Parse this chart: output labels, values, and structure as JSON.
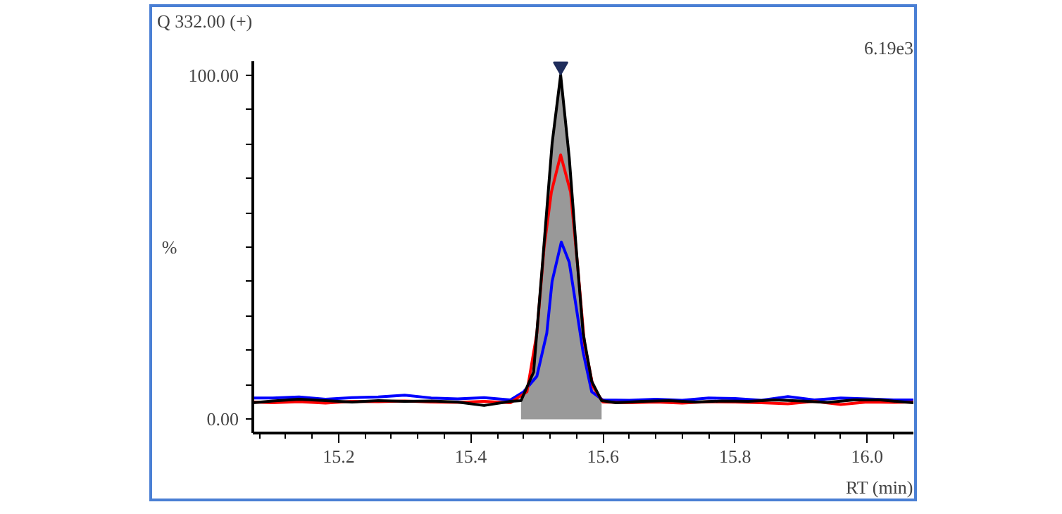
{
  "chart_data": {
    "type": "line",
    "title": "Q 332.00 (+)",
    "ylabel": "%",
    "xlabel": "RT (min)",
    "annotations": [
      "6.19e3"
    ],
    "xlim": [
      15.07,
      16.07
    ],
    "ylim": [
      -4,
      104
    ],
    "xticks": [
      15.2,
      15.4,
      15.6,
      15.8,
      {
        "value": 16,
        "label": "16.0"
      }
    ],
    "yticks": [
      {
        "value": 0,
        "label": "0.00"
      },
      {
        "value": 10,
        "label": null
      },
      {
        "value": 20,
        "label": null
      },
      {
        "value": 30,
        "label": null
      },
      {
        "value": 40,
        "label": null
      },
      {
        "value": 50,
        "label": null
      },
      {
        "value": 60,
        "label": null
      },
      {
        "value": 70,
        "label": null
      },
      {
        "value": 80,
        "label": null
      },
      {
        "value": 90,
        "label": null
      },
      {
        "value": 100,
        "label": "100.00"
      }
    ],
    "line_style": "solid",
    "series": [
      {
        "type": "area",
        "color": "#999999",
        "x": [
          15.476,
          15.495,
          15.508,
          15.523,
          15.536,
          15.549,
          15.56,
          15.57,
          15.583,
          15.598
        ],
        "values": [
          5.4,
          13.7,
          44,
          80,
          100,
          76,
          48.5,
          25,
          11,
          5.4
        ]
      },
      {
        "color": "#0000ff",
        "x": [
          15.07,
          15.1,
          15.14,
          15.18,
          15.22,
          15.26,
          15.3,
          15.34,
          15.38,
          15.42,
          15.46,
          15.48,
          15.5,
          15.515,
          15.523,
          15.537,
          15.549,
          15.56,
          15.57,
          15.583,
          15.6,
          15.64,
          15.68,
          15.72,
          15.76,
          15.8,
          15.84,
          15.88,
          15.92,
          15.96,
          16.0,
          16.04,
          16.07
        ],
        "values": [
          6.2,
          6.2,
          6.5,
          5.8,
          6.3,
          6.5,
          7,
          6.2,
          5.9,
          6.3,
          5.6,
          8,
          12.5,
          25,
          40,
          51.5,
          45.6,
          32,
          19.5,
          8,
          5.6,
          5.5,
          5.8,
          5.5,
          6.2,
          6,
          5.5,
          6.6,
          5.6,
          6.2,
          5.9,
          5.6,
          5.6
        ]
      },
      {
        "color": "#ff0000",
        "x": [
          15.07,
          15.1,
          15.14,
          15.18,
          15.22,
          15.26,
          15.3,
          15.34,
          15.38,
          15.42,
          15.46,
          15.485,
          15.5,
          15.511,
          15.522,
          15.536,
          15.551,
          15.562,
          15.572,
          15.585,
          15.6,
          15.64,
          15.68,
          15.72,
          15.76,
          15.8,
          15.84,
          15.88,
          15.92,
          15.96,
          16.0,
          16.04,
          16.07
        ],
        "values": [
          5,
          4.8,
          5.1,
          4.7,
          5.2,
          5.1,
          5.3,
          5,
          4.9,
          5.2,
          4.8,
          8,
          25,
          50,
          66,
          76.8,
          66,
          44,
          22,
          9.5,
          5,
          4.8,
          5,
          4.7,
          5.1,
          5,
          4.8,
          4.5,
          5.2,
          4.3,
          5,
          4.9,
          5
        ]
      },
      {
        "color": "#000000",
        "x": [
          15.07,
          15.1,
          15.14,
          15.18,
          15.22,
          15.26,
          15.3,
          15.34,
          15.38,
          15.42,
          15.46,
          15.476,
          15.495,
          15.508,
          15.523,
          15.536,
          15.549,
          15.56,
          15.57,
          15.583,
          15.598,
          15.62,
          15.66,
          15.7,
          15.74,
          15.78,
          15.82,
          15.86,
          15.9,
          15.94,
          15.98,
          16.02,
          16.07
        ],
        "values": [
          4.8,
          5.3,
          5.8,
          5.4,
          5,
          5.4,
          5.2,
          5.3,
          5,
          4,
          5.2,
          5.4,
          13.7,
          44,
          80,
          100,
          76,
          48.5,
          25,
          11,
          5.4,
          4.8,
          5.2,
          5.4,
          5,
          5.3,
          5.2,
          5.6,
          5.3,
          4.9,
          5.6,
          5.6,
          4.8
        ]
      },
      {
        "type": "scatter",
        "marker": "triangle",
        "color": "#1f2d5c",
        "x": [
          15.536
        ],
        "values": [
          102.5
        ]
      }
    ]
  }
}
